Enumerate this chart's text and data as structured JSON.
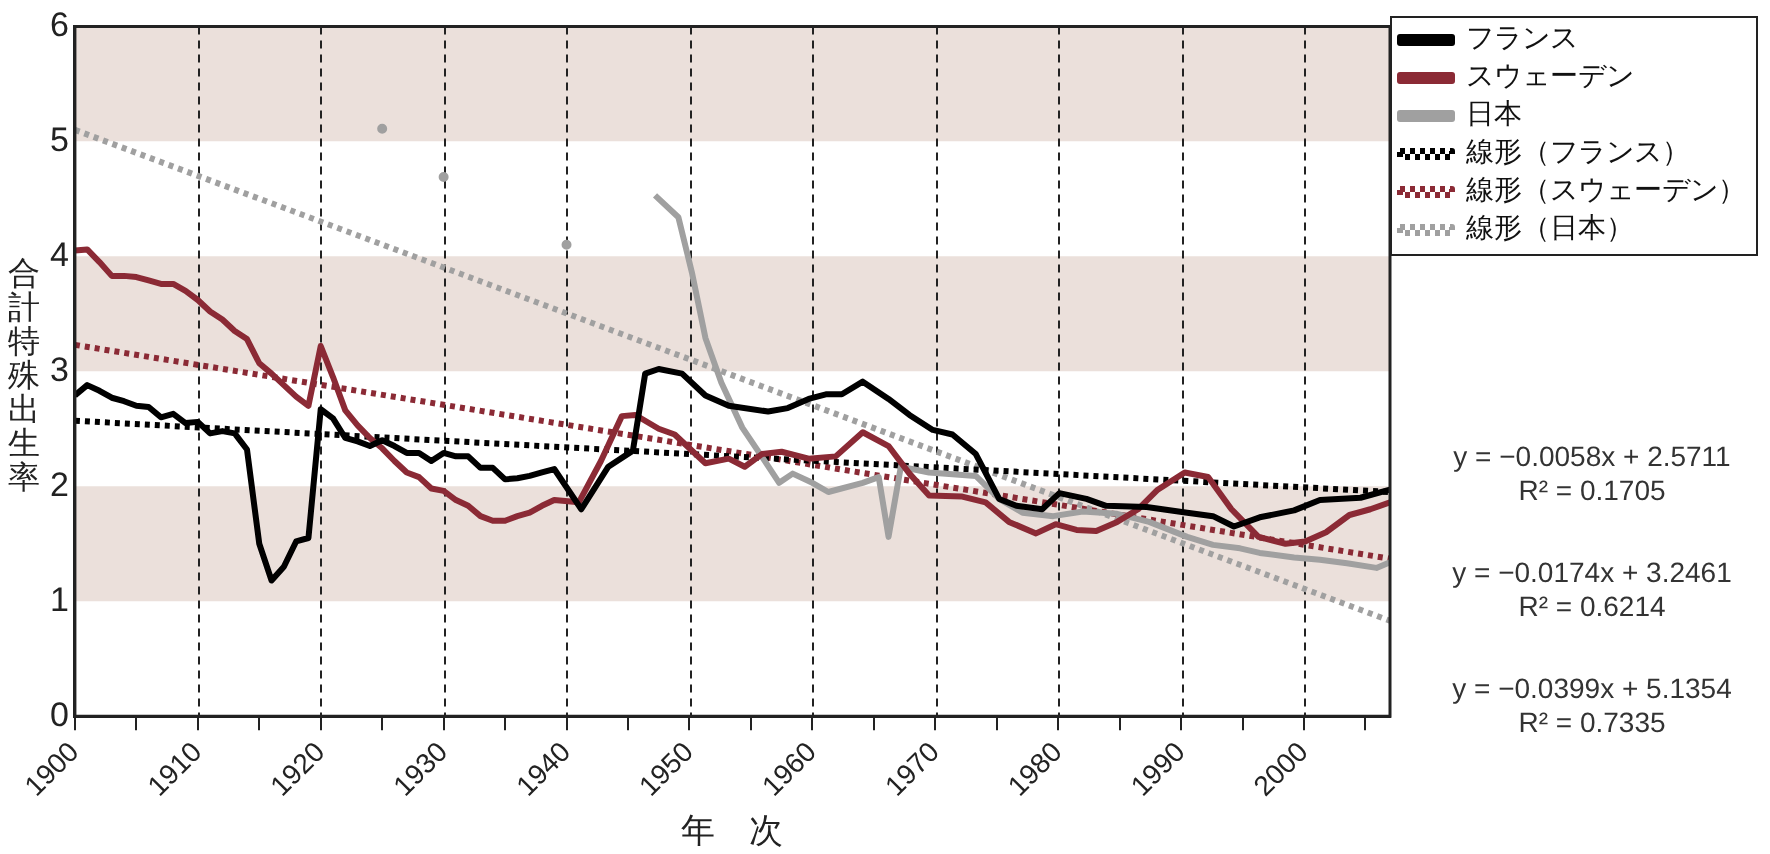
{
  "chart_data": {
    "type": "line",
    "xlabel": "年　次",
    "ylabel": "合計特殊出生率",
    "xlim": [
      1900,
      2007
    ],
    "ylim": [
      0,
      6
    ],
    "xticks": [
      1900,
      {
        "value": 1905,
        "label": null
      },
      1910,
      {
        "value": 1915,
        "label": null
      },
      1920,
      {
        "value": 1925,
        "label": null
      },
      1930,
      {
        "value": 1935,
        "label": null
      },
      1940,
      {
        "value": 1945,
        "label": null
      },
      1950,
      {
        "value": 1955,
        "label": null
      },
      1960,
      {
        "value": 1965,
        "label": null
      },
      1970,
      {
        "value": 1975,
        "label": null
      },
      1980,
      {
        "value": 1985,
        "label": null
      },
      1990,
      {
        "value": 1995,
        "label": null
      },
      2000,
      {
        "value": 2005,
        "label": null
      }
    ],
    "yticks": [
      0,
      1,
      2,
      3,
      4,
      5,
      6
    ],
    "grid": "x",
    "legend": "top right",
    "marker": "none",
    "line_style": "solid",
    "bands": [
      {
        "axis": "y",
        "from": 1,
        "to": 2,
        "color": "#ebe0db"
      },
      {
        "axis": "y",
        "from": 3,
        "to": 4,
        "color": "#ebe0db"
      },
      {
        "axis": "y",
        "from": 5,
        "to": 6,
        "color": "#ebe0db"
      }
    ],
    "series": [
      {
        "name": "フランス",
        "color": "#000000",
        "x": [
          1900,
          1901,
          1902,
          1903,
          1904,
          1905,
          1906,
          1907,
          1908,
          1909,
          1910,
          1911,
          1912,
          1913,
          1914,
          1915,
          1916,
          1917,
          1918,
          1919,
          1920,
          1921,
          1922,
          1923,
          1924,
          1925,
          1926,
          1927,
          1928,
          1929,
          1930,
          1931,
          1932,
          1933,
          1934,
          1935,
          1936,
          1937,
          1938,
          1939,
          1941.2,
          1943.4,
          1945.4,
          1946.4,
          1947.5,
          1949.4,
          1951.3,
          1953.2,
          1956.4,
          1958,
          1959.7,
          1961.1,
          1962.4,
          1964.1,
          1966.2,
          1967.9,
          1969.8,
          1971.4,
          1973.3,
          1975.2,
          1976.6,
          1978.7,
          1980.1,
          1982.3,
          1983.9,
          1987.2,
          1990.5,
          1992.6,
          1994.3,
          1996.4,
          1999.2,
          2001.3,
          2004.6,
          2007
        ],
        "values": [
          2.79,
          2.88,
          2.83,
          2.77,
          2.74,
          2.7,
          2.69,
          2.6,
          2.63,
          2.55,
          2.56,
          2.46,
          2.48,
          2.46,
          2.32,
          1.5,
          1.18,
          1.3,
          1.52,
          1.55,
          2.67,
          2.59,
          2.42,
          2.39,
          2.35,
          2.4,
          2.35,
          2.29,
          2.29,
          2.22,
          2.29,
          2.26,
          2.26,
          2.16,
          2.16,
          2.06,
          2.07,
          2.09,
          2.12,
          2.15,
          1.8,
          2.17,
          2.31,
          2.98,
          3.02,
          2.98,
          2.79,
          2.7,
          2.65,
          2.68,
          2.76,
          2.8,
          2.8,
          2.91,
          2.76,
          2.62,
          2.49,
          2.45,
          2.28,
          1.89,
          1.83,
          1.8,
          1.94,
          1.89,
          1.83,
          1.82,
          1.77,
          1.74,
          1.65,
          1.73,
          1.79,
          1.88,
          1.9,
          1.97
        ]
      },
      {
        "name": "スウェーデン",
        "color": "#8b2a35",
        "x": [
          1900,
          1901,
          1902,
          1903,
          1904,
          1905,
          1906,
          1907,
          1908,
          1909,
          1910,
          1911,
          1912,
          1913,
          1914,
          1915,
          1916,
          1917,
          1918,
          1919,
          1920,
          1921,
          1922,
          1923,
          1924,
          1925,
          1926,
          1927,
          1928,
          1929,
          1930,
          1931,
          1932,
          1933,
          1934,
          1935,
          1936,
          1937,
          1938,
          1939,
          1941,
          1942.8,
          1944.5,
          1945.6,
          1947.5,
          1948.8,
          1951.3,
          1953.2,
          1954.5,
          1955.9,
          1957.5,
          1959.7,
          1961.9,
          1964.1,
          1966.2,
          1967.9,
          1969.5,
          1972.2,
          1974.1,
          1976,
          1978.2,
          1979.8,
          1981.5,
          1983.1,
          1984.8,
          1986.5,
          1988.1,
          1990.3,
          1992.2,
          1994.1,
          1996.3,
          1998.5,
          2000.1,
          2001.8,
          2003.7,
          2005.4,
          2007
        ],
        "values": [
          4.05,
          4.06,
          3.95,
          3.83,
          3.83,
          3.82,
          3.79,
          3.76,
          3.76,
          3.7,
          3.62,
          3.52,
          3.45,
          3.35,
          3.28,
          3.07,
          2.98,
          2.88,
          2.78,
          2.7,
          3.22,
          2.95,
          2.66,
          2.53,
          2.42,
          2.33,
          2.22,
          2.12,
          2.08,
          1.98,
          1.96,
          1.88,
          1.83,
          1.74,
          1.7,
          1.7,
          1.74,
          1.77,
          1.83,
          1.88,
          1.86,
          2.22,
          2.61,
          2.62,
          2.5,
          2.45,
          2.2,
          2.24,
          2.17,
          2.28,
          2.3,
          2.24,
          2.26,
          2.47,
          2.35,
          2.11,
          1.92,
          1.91,
          1.86,
          1.69,
          1.59,
          1.67,
          1.62,
          1.61,
          1.69,
          1.8,
          1.97,
          2.12,
          2.08,
          1.8,
          1.56,
          1.5,
          1.52,
          1.6,
          1.75,
          1.8,
          1.86
        ]
      },
      {
        "name": "日本",
        "color": "#a0a0a0",
        "x": [
          1947.2,
          1949.1,
          1950.2,
          1951.3,
          1952.6,
          1954.3,
          1956,
          1957.3,
          1958.4,
          1960,
          1961.3,
          1964.1,
          1965.4,
          1966.2,
          1967.2,
          1969.5,
          1973.3,
          1975.2,
          1977.1,
          1979.6,
          1982,
          1984.8,
          1987.4,
          1990.5,
          1992.6,
          1994.8,
          1996.4,
          1999.2,
          2001.3,
          2003.5,
          2005.9,
          2007
        ],
        "values": [
          4.53,
          4.34,
          3.86,
          3.29,
          2.9,
          2.51,
          2.24,
          2.03,
          2.11,
          2.03,
          1.95,
          2.03,
          2.08,
          1.56,
          2.17,
          2.12,
          2.09,
          1.89,
          1.77,
          1.74,
          1.78,
          1.76,
          1.69,
          1.56,
          1.49,
          1.46,
          1.42,
          1.38,
          1.36,
          1.33,
          1.29,
          1.34
        ]
      },
      {
        "name": "線形（フランス）",
        "color": "#000000",
        "line_style": "dotted",
        "x": [
          1900,
          2007
        ],
        "values": [
          2.57,
          1.95
        ]
      },
      {
        "name": "線形（スウェーデン）",
        "color": "#8b2a35",
        "line_style": "dotted",
        "x": [
          1900,
          2007
        ],
        "values": [
          3.23,
          1.37
        ]
      },
      {
        "name": "線形（日本）",
        "color": "#a0a0a0",
        "line_style": "dotted",
        "x": [
          1900,
          2007
        ],
        "values": [
          5.1,
          0.83
        ]
      },
      {
        "type": "scatter",
        "marker": "circle",
        "color": "#a0a0a0",
        "x": [
          1925,
          1930,
          1940
        ],
        "values": [
          5.11,
          4.69,
          4.1
        ]
      }
    ],
    "annotations": [
      "y = −0.0058x + 2.5711\nR² = 0.1705",
      "y = −0.0174x + 3.2461\nR² = 0.6214",
      "y = −0.0399x + 5.1354\nR² = 0.7335"
    ]
  }
}
